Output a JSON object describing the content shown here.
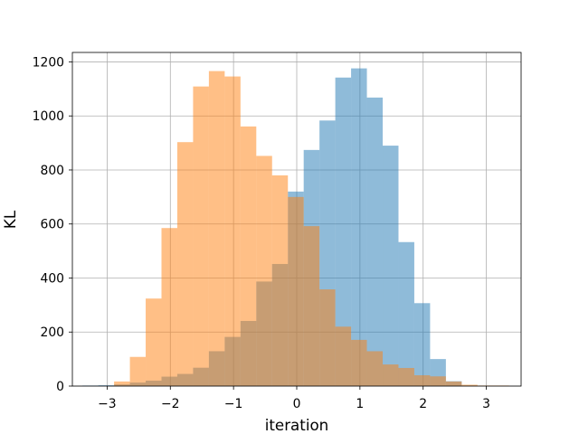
{
  "chart_data": {
    "type": "histogram",
    "title": "",
    "xlabel": "iteration",
    "ylabel": "KL",
    "xlim": [
      -3.55,
      3.55
    ],
    "ylim": [
      0,
      1235
    ],
    "xticks": [
      -3,
      -2,
      -1,
      0,
      1,
      2,
      3
    ],
    "xtick_labels": [
      "−3",
      "−2",
      "−1",
      "0",
      "1",
      "2",
      "3"
    ],
    "yticks": [
      0,
      200,
      400,
      600,
      800,
      1000,
      1200
    ],
    "ytick_labels": [
      "0",
      "200",
      "400",
      "600",
      "800",
      "1000",
      "1200"
    ],
    "grid": true,
    "legend": "none",
    "series": [
      {
        "color": "#1f77b4",
        "alpha": 0.5,
        "bins": [
          {
            "x0": -3.39,
            "x1": -3.14,
            "value": 2
          },
          {
            "x0": -3.14,
            "x1": -2.89,
            "value": 3
          },
          {
            "x0": -2.89,
            "x1": -2.64,
            "value": 6
          },
          {
            "x0": -2.64,
            "x1": -2.39,
            "value": 13
          },
          {
            "x0": -2.39,
            "x1": -2.14,
            "value": 20
          },
          {
            "x0": -2.14,
            "x1": -1.89,
            "value": 35
          },
          {
            "x0": -1.89,
            "x1": -1.64,
            "value": 45
          },
          {
            "x0": -1.64,
            "x1": -1.39,
            "value": 68
          },
          {
            "x0": -1.39,
            "x1": -1.14,
            "value": 129
          },
          {
            "x0": -1.14,
            "x1": -0.89,
            "value": 182
          },
          {
            "x0": -0.89,
            "x1": -0.64,
            "value": 241
          },
          {
            "x0": -0.64,
            "x1": -0.39,
            "value": 387
          },
          {
            "x0": -0.39,
            "x1": -0.14,
            "value": 452
          },
          {
            "x0": -0.14,
            "x1": 0.11,
            "value": 720
          },
          {
            "x0": 0.11,
            "x1": 0.36,
            "value": 874
          },
          {
            "x0": 0.36,
            "x1": 0.61,
            "value": 983
          },
          {
            "x0": 0.61,
            "x1": 0.86,
            "value": 1142
          },
          {
            "x0": 0.86,
            "x1": 1.11,
            "value": 1176
          },
          {
            "x0": 1.11,
            "x1": 1.36,
            "value": 1068
          },
          {
            "x0": 1.36,
            "x1": 1.61,
            "value": 890
          },
          {
            "x0": 1.61,
            "x1": 1.86,
            "value": 533
          },
          {
            "x0": 1.86,
            "x1": 2.11,
            "value": 307
          },
          {
            "x0": 2.11,
            "x1": 2.36,
            "value": 100
          },
          {
            "x0": 2.36,
            "x1": 2.61,
            "value": 18
          },
          {
            "x0": 2.61,
            "x1": 2.86,
            "value": 2
          }
        ]
      },
      {
        "color": "#ff7f0e",
        "alpha": 0.5,
        "bins": [
          {
            "x0": -2.89,
            "x1": -2.64,
            "value": 17
          },
          {
            "x0": -2.64,
            "x1": -2.39,
            "value": 108
          },
          {
            "x0": -2.39,
            "x1": -2.14,
            "value": 324
          },
          {
            "x0": -2.14,
            "x1": -1.89,
            "value": 585
          },
          {
            "x0": -1.89,
            "x1": -1.64,
            "value": 903
          },
          {
            "x0": -1.64,
            "x1": -1.39,
            "value": 1109
          },
          {
            "x0": -1.39,
            "x1": -1.14,
            "value": 1166
          },
          {
            "x0": -1.14,
            "x1": -0.89,
            "value": 1146
          },
          {
            "x0": -0.89,
            "x1": -0.64,
            "value": 961
          },
          {
            "x0": -0.64,
            "x1": -0.39,
            "value": 852
          },
          {
            "x0": -0.39,
            "x1": -0.14,
            "value": 780
          },
          {
            "x0": -0.14,
            "x1": 0.11,
            "value": 700
          },
          {
            "x0": 0.11,
            "x1": 0.36,
            "value": 592
          },
          {
            "x0": 0.36,
            "x1": 0.61,
            "value": 358
          },
          {
            "x0": 0.61,
            "x1": 0.86,
            "value": 220
          },
          {
            "x0": 0.86,
            "x1": 1.11,
            "value": 171
          },
          {
            "x0": 1.11,
            "x1": 1.36,
            "value": 129
          },
          {
            "x0": 1.36,
            "x1": 1.61,
            "value": 80
          },
          {
            "x0": 1.61,
            "x1": 1.86,
            "value": 67
          },
          {
            "x0": 1.86,
            "x1": 2.11,
            "value": 40
          },
          {
            "x0": 2.11,
            "x1": 2.36,
            "value": 36
          },
          {
            "x0": 2.36,
            "x1": 2.61,
            "value": 17
          },
          {
            "x0": 2.61,
            "x1": 2.86,
            "value": 5
          },
          {
            "x0": 2.86,
            "x1": 3.11,
            "value": 2
          },
          {
            "x0": 3.11,
            "x1": 3.36,
            "value": 2
          }
        ]
      }
    ]
  }
}
